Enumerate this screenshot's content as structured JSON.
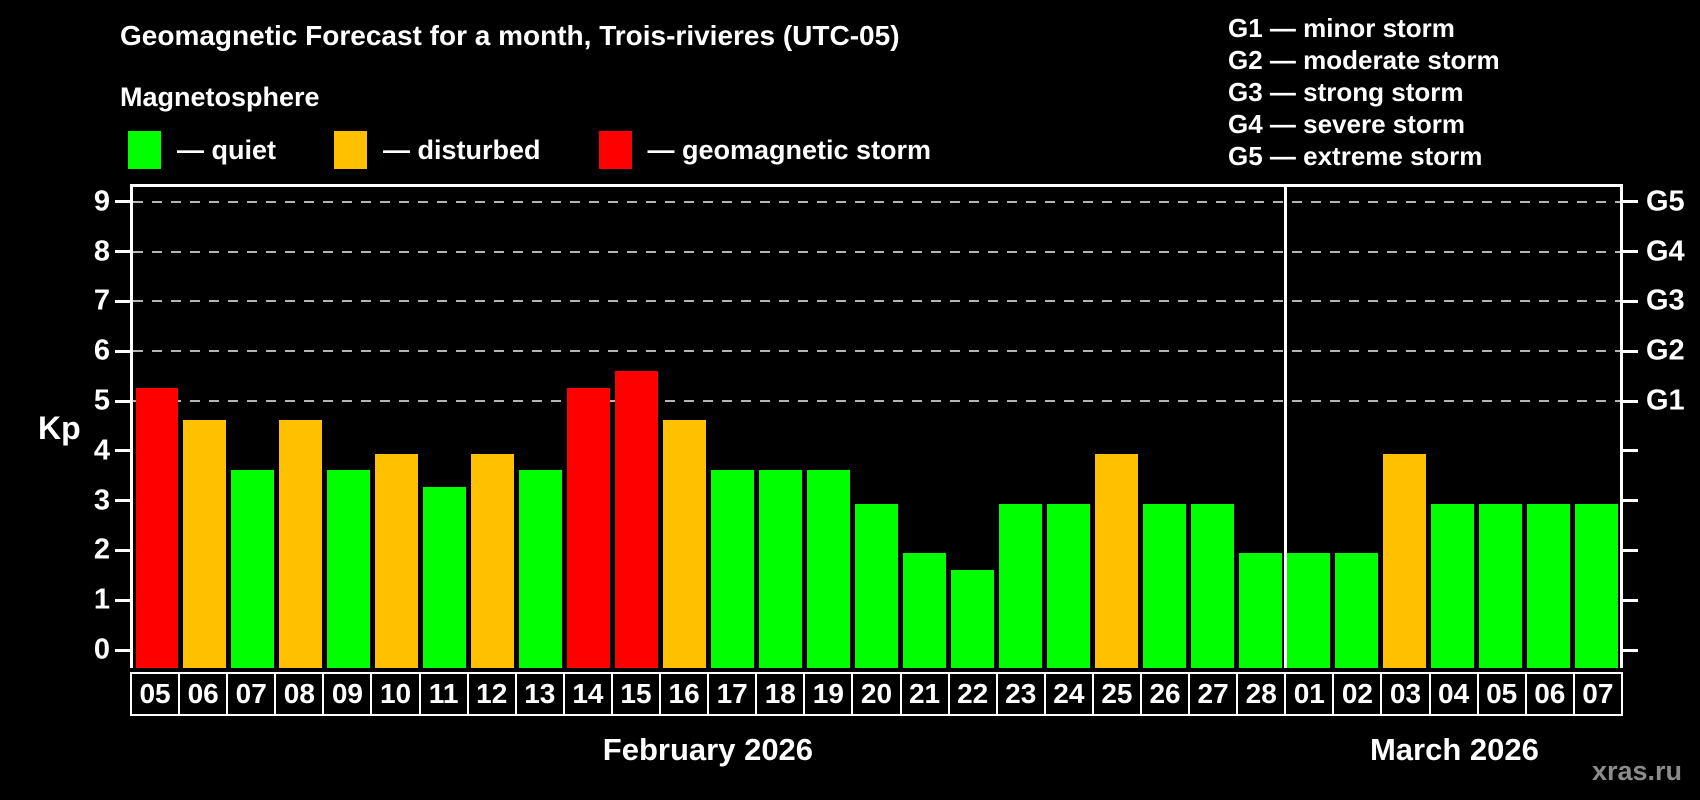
{
  "header": {
    "title": "Geomagnetic Forecast for a month, Trois-rivieres (UTC-05)",
    "subtitle": "Magnetosphere",
    "legend": [
      {
        "status": "quiet",
        "label": "— quiet"
      },
      {
        "status": "disturbed",
        "label": "— disturbed"
      },
      {
        "status": "storm",
        "label": "— geomagnetic storm"
      }
    ]
  },
  "storm_scale_legend": [
    {
      "code": "G1",
      "label": "G1 — minor storm"
    },
    {
      "code": "G2",
      "label": "G2 — moderate storm"
    },
    {
      "code": "G3",
      "label": "G3 — strong storm"
    },
    {
      "code": "G4",
      "label": "G4 — severe storm"
    },
    {
      "code": "G5",
      "label": "G5 — extreme storm"
    }
  ],
  "chart_data": {
    "type": "bar",
    "ylabel": "Kp",
    "ylim": [
      0,
      9.35
    ],
    "yticks": [
      0,
      1,
      2,
      3,
      4,
      5,
      6,
      7,
      8,
      9
    ],
    "gridlines_kp": [
      5,
      6,
      7,
      8,
      9
    ],
    "right_axis_labels": [
      {
        "kp": 5,
        "label": "G1"
      },
      {
        "kp": 6,
        "label": "G2"
      },
      {
        "kp": 7,
        "label": "G3"
      },
      {
        "kp": 8,
        "label": "G4"
      },
      {
        "kp": 9,
        "label": "G5"
      }
    ],
    "colors": {
      "quiet": "#00ff00",
      "disturbed": "#ffc000",
      "storm": "#ff0000"
    },
    "months": [
      {
        "label": "February 2026",
        "days": 24
      },
      {
        "label": "March 2026",
        "days": 7
      }
    ],
    "bars": [
      {
        "day": "05",
        "kp": 5.33,
        "status": "storm"
      },
      {
        "day": "06",
        "kp": 4.67,
        "status": "disturbed"
      },
      {
        "day": "07",
        "kp": 3.67,
        "status": "quiet"
      },
      {
        "day": "08",
        "kp": 4.67,
        "status": "disturbed"
      },
      {
        "day": "09",
        "kp": 3.67,
        "status": "quiet"
      },
      {
        "day": "10",
        "kp": 4.0,
        "status": "disturbed"
      },
      {
        "day": "11",
        "kp": 3.33,
        "status": "quiet"
      },
      {
        "day": "12",
        "kp": 4.0,
        "status": "disturbed"
      },
      {
        "day": "13",
        "kp": 3.67,
        "status": "quiet"
      },
      {
        "day": "14",
        "kp": 5.33,
        "status": "storm"
      },
      {
        "day": "15",
        "kp": 5.67,
        "status": "storm"
      },
      {
        "day": "16",
        "kp": 4.67,
        "status": "disturbed"
      },
      {
        "day": "17",
        "kp": 3.67,
        "status": "quiet"
      },
      {
        "day": "18",
        "kp": 3.67,
        "status": "quiet"
      },
      {
        "day": "19",
        "kp": 3.67,
        "status": "quiet"
      },
      {
        "day": "20",
        "kp": 3.0,
        "status": "quiet"
      },
      {
        "day": "21",
        "kp": 2.0,
        "status": "quiet"
      },
      {
        "day": "22",
        "kp": 1.67,
        "status": "quiet"
      },
      {
        "day": "23",
        "kp": 3.0,
        "status": "quiet"
      },
      {
        "day": "24",
        "kp": 3.0,
        "status": "quiet"
      },
      {
        "day": "25",
        "kp": 4.0,
        "status": "disturbed"
      },
      {
        "day": "26",
        "kp": 3.0,
        "status": "quiet"
      },
      {
        "day": "27",
        "kp": 3.0,
        "status": "quiet"
      },
      {
        "day": "28",
        "kp": 2.0,
        "status": "quiet"
      },
      {
        "day": "01",
        "kp": 2.0,
        "status": "quiet"
      },
      {
        "day": "02",
        "kp": 2.0,
        "status": "quiet"
      },
      {
        "day": "03",
        "kp": 4.0,
        "status": "disturbed"
      },
      {
        "day": "04",
        "kp": 3.0,
        "status": "quiet"
      },
      {
        "day": "05",
        "kp": 3.0,
        "status": "quiet"
      },
      {
        "day": "06",
        "kp": 3.0,
        "status": "quiet"
      },
      {
        "day": "07",
        "kp": 3.0,
        "status": "quiet"
      }
    ]
  },
  "watermark": "xras.ru"
}
